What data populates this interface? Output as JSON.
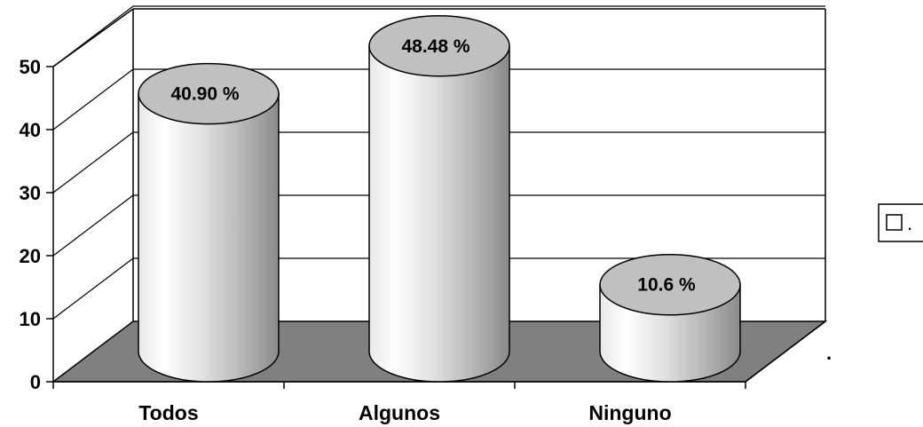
{
  "chart_data": {
    "type": "bar",
    "categories": [
      "Todos",
      "Algunos",
      "Ninguno"
    ],
    "values": [
      40.9,
      48.48,
      10.6
    ],
    "data_labels": [
      "40.90 %",
      "48.48 %",
      "10.6 %"
    ],
    "yticks": [
      "0",
      "10",
      "20",
      "30",
      "40",
      "50"
    ],
    "ylim": [
      0,
      50
    ],
    "title": "",
    "xlabel": "",
    "ylabel": "",
    "grid": true,
    "legend_position": "right",
    "legend_entries": [
      "."
    ],
    "colors": {
      "floor": "#808080",
      "cylinder_top": "#c0c0c0",
      "grid": "#000000"
    }
  }
}
